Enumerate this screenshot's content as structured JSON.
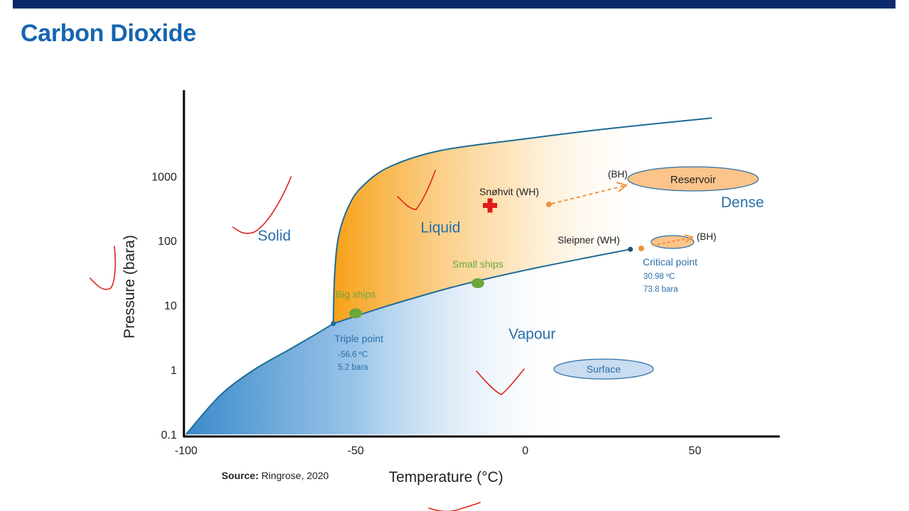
{
  "slide": {
    "title": "Carbon Dioxide",
    "source_label": "Source:",
    "source_text": "Ringrose, 2020"
  },
  "chart_data": {
    "type": "line",
    "title": "",
    "xlabel": "Temperature (°C)",
    "ylabel": "Pressure (bara)",
    "xlim": [
      -100,
      75
    ],
    "ylim": [
      0.1,
      20000
    ],
    "y_scale": "log",
    "x_ticks": [
      -100,
      -50,
      0,
      50
    ],
    "x_tick_labels": [
      "-100",
      "-50",
      "0",
      "50"
    ],
    "y_ticks": [
      0.1,
      1,
      10,
      100,
      1000
    ],
    "y_tick_labels": [
      "0.1",
      "1",
      "10",
      "100",
      "1000"
    ],
    "grid": false,
    "series": [
      {
        "key": "sublimation",
        "x": [
          -100,
          -90,
          -80,
          -70,
          -62,
          -56.6
        ],
        "y": [
          0.1,
          0.4,
          1.0,
          2.0,
          3.5,
          5.2
        ]
      },
      {
        "key": "vaporisation",
        "x": [
          -56.6,
          -40,
          -20,
          0,
          20,
          30.98
        ],
        "y": [
          5.2,
          10,
          20,
          35,
          57,
          73.8
        ]
      },
      {
        "key": "melting",
        "x": [
          -56.6,
          -56.2,
          -55,
          -52,
          -48,
          -40,
          -25,
          0,
          25,
          55
        ],
        "y": [
          5.2,
          30,
          120,
          350,
          700,
          1400,
          2500,
          3800,
          5500,
          8000
        ]
      }
    ],
    "colors": {
      "line": "#1f6b95",
      "liquid": "#f7a21b",
      "vapour": "#3f8fd0",
      "title": "#1565b0",
      "green": "#6aa83c",
      "orange": "#f0913a",
      "blue_text": "#2a6fa8"
    },
    "region_labels": [
      {
        "text": "Solid",
        "x": -74,
        "y": 100
      },
      {
        "text": "Liquid",
        "x": -25,
        "y": 135
      },
      {
        "text": "Vapour",
        "x": 2,
        "y": 3
      },
      {
        "text": "Dense",
        "x": 64,
        "y": 330
      }
    ],
    "points": [
      {
        "name": "Big ships",
        "x": -50,
        "y": 7.5
      },
      {
        "name": "Small ships",
        "x": -14,
        "y": 22
      }
    ],
    "triple_point": {
      "label": "Triple point",
      "t": "-56.6 ºC",
      "p": "5.2 bara",
      "x": -56.6,
      "y": 5.2
    },
    "critical_point": {
      "label": "Critical point",
      "t": "30.98 ºC",
      "p": "73.8 bara",
      "x": 30.98,
      "y": 73.8
    },
    "annotations": {
      "snohvit": "Snøhvit (WH)",
      "sleipner": "Sleipner (WH)",
      "bh_top": "(BH)",
      "bh_right": "(BH)",
      "reservoir": "Reservoir",
      "surface": "Surface"
    }
  }
}
